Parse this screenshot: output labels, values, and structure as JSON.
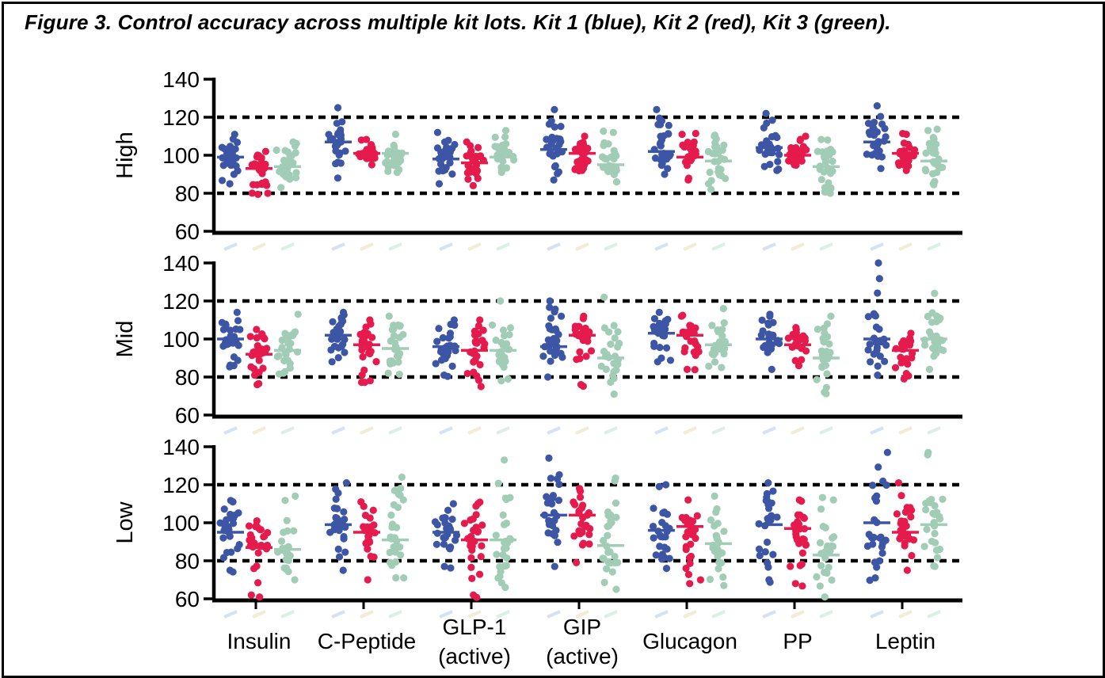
{
  "title": "Figure 3. Control accuracy across multiple kit lots. Kit 1 (blue), Kit 2 (red), Kit 3 (green).",
  "chart_data": {
    "type": "scatter",
    "subtype": "beeswarm-dot-plot-with-median-bars",
    "categories": [
      "Insulin",
      "C-Peptide",
      "GLP-1 (active)",
      "GIP (active)",
      "Glucagon",
      "PP",
      "Leptin"
    ],
    "kits": [
      {
        "name": "Kit 1",
        "color": "#3C55A4"
      },
      {
        "name": "Kit 2",
        "color": "#E51A4D"
      },
      {
        "name": "Kit 3",
        "color": "#A1CCB6"
      }
    ],
    "ylim": [
      60,
      140
    ],
    "yticks": [
      60,
      80,
      100,
      120,
      140
    ],
    "ref_lines": [
      80,
      120
    ],
    "grid": false,
    "legend_position": "in-title",
    "points_per_cluster": 27,
    "stat_format": "per kit cluster: [median, min, max] (percent accuracy, estimated from plot)",
    "panels": [
      {
        "label": "High",
        "stats": [
          [
            [
              99,
              85,
              111
            ],
            [
              93,
              80,
              102
            ],
            [
              94,
              83,
              107
            ]
          ],
          [
            [
              107,
              88,
              125
            ],
            [
              101,
              95,
              108
            ],
            [
              101,
              91,
              111
            ]
          ],
          [
            [
              98,
              85,
              112
            ],
            [
              96,
              84,
              107
            ],
            [
              99,
              91,
              113
            ]
          ],
          [
            [
              103,
              87,
              124
            ],
            [
              101,
              92,
              110
            ],
            [
              95,
              86,
              112
            ]
          ],
          [
            [
              102,
              90,
              124
            ],
            [
              99,
              87,
              111
            ],
            [
              97,
              82,
              110
            ]
          ],
          [
            [
              104,
              92,
              122
            ],
            [
              100,
              95,
              110
            ],
            [
              94,
              80,
              108
            ]
          ],
          [
            [
              107,
              93,
              126
            ],
            [
              101,
              92,
              111
            ],
            [
              97,
              85,
              113
            ]
          ]
        ]
      },
      {
        "label": "Mid",
        "stats": [
          [
            [
              100,
              86,
              114
            ],
            [
              92,
              76,
              105
            ],
            [
              94,
              82,
              113
            ]
          ],
          [
            [
              102,
              88,
              114
            ],
            [
              97,
              78,
              110
            ],
            [
              95,
              82,
              112
            ]
          ],
          [
            [
              96,
              81,
              110
            ],
            [
              94,
              75,
              110
            ],
            [
              94,
              78,
              120
            ]
          ],
          [
            [
              96,
              80,
              120
            ],
            [
              102,
              76,
              112
            ],
            [
              90,
              71,
              122
            ]
          ],
          [
            [
              103,
              88,
              114
            ],
            [
              102,
              84,
              112
            ],
            [
              97,
              85,
              116
            ]
          ],
          [
            [
              100,
              84,
              113
            ],
            [
              97,
              86,
              106
            ],
            [
              90,
              72,
              112
            ]
          ],
          [
            [
              100,
              81,
              140
            ],
            [
              94,
              79,
              103
            ],
            [
              100,
              84,
              124
            ]
          ]
        ]
      },
      {
        "label": "Low",
        "stats": [
          [
            [
              95,
              75,
              111
            ],
            [
              87,
              62,
              101
            ],
            [
              86,
              70,
              114
            ]
          ],
          [
            [
              99,
              75,
              121
            ],
            [
              95,
              70,
              111
            ],
            [
              91,
              71,
              124
            ]
          ],
          [
            [
              95,
              77,
              110
            ],
            [
              91,
              62,
              110
            ],
            [
              91,
              66,
              133
            ]
          ],
          [
            [
              104,
              77,
              134
            ],
            [
              104,
              79,
              118
            ],
            [
              88,
              65,
              122
            ]
          ],
          [
            [
              96,
              76,
              119
            ],
            [
              98,
              68,
              112
            ],
            [
              89,
              67,
              114
            ]
          ],
          [
            [
              99,
              70,
              121
            ],
            [
              97,
              68,
              112
            ],
            [
              83,
              61,
              112
            ]
          ],
          [
            [
              100,
              71,
              137
            ],
            [
              95,
              75,
              121
            ],
            [
              99,
              77,
              137
            ]
          ]
        ]
      }
    ]
  }
}
